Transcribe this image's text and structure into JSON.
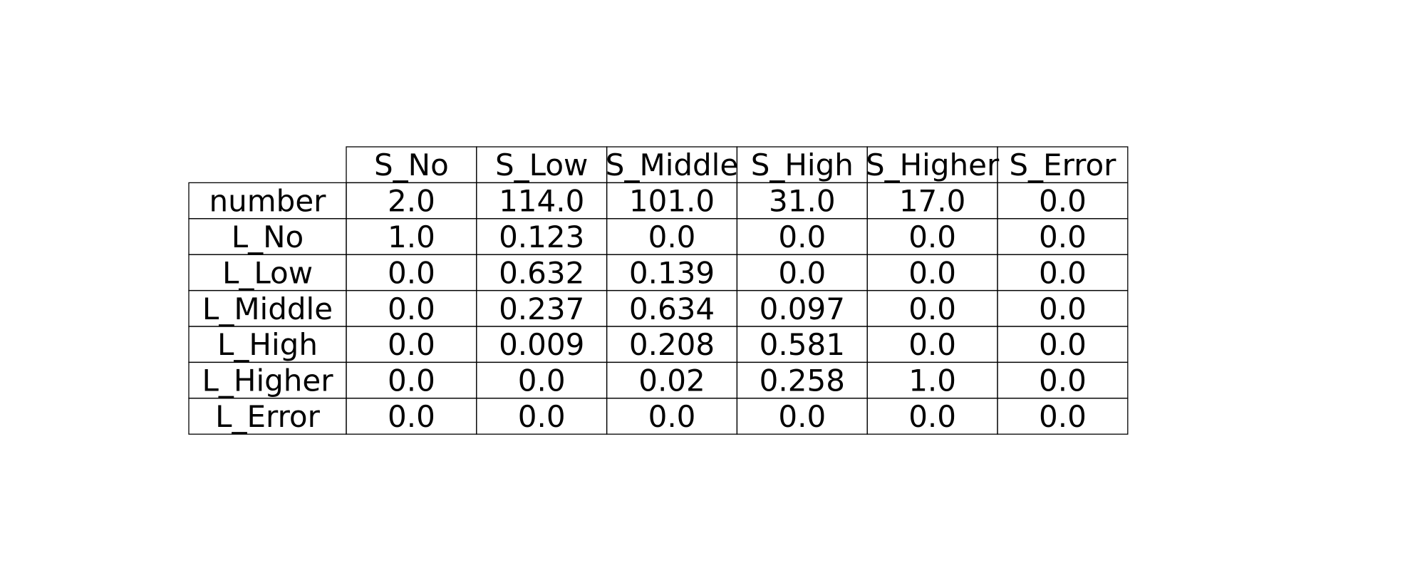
{
  "chart_data": {
    "type": "table",
    "columns": [
      "S_No",
      "S_Low",
      "S_Middle",
      "S_High",
      "S_Higher",
      "S_Error"
    ],
    "rows": [
      {
        "label": "number",
        "values": [
          "2.0",
          "114.0",
          "101.0",
          "31.0",
          "17.0",
          "0.0"
        ]
      },
      {
        "label": "L_No",
        "values": [
          "1.0",
          "0.123",
          "0.0",
          "0.0",
          "0.0",
          "0.0"
        ]
      },
      {
        "label": "L_Low",
        "values": [
          "0.0",
          "0.632",
          "0.139",
          "0.0",
          "0.0",
          "0.0"
        ]
      },
      {
        "label": "L_Middle",
        "values": [
          "0.0",
          "0.237",
          "0.634",
          "0.097",
          "0.0",
          "0.0"
        ]
      },
      {
        "label": "L_High",
        "values": [
          "0.0",
          "0.009",
          "0.208",
          "0.581",
          "0.0",
          "0.0"
        ]
      },
      {
        "label": "L_Higher",
        "values": [
          "0.0",
          "0.0",
          "0.02",
          "0.258",
          "1.0",
          "0.0"
        ]
      },
      {
        "label": "L_Error",
        "values": [
          "0.0",
          "0.0",
          "0.0",
          "0.0",
          "0.0",
          "0.0"
        ]
      }
    ]
  }
}
